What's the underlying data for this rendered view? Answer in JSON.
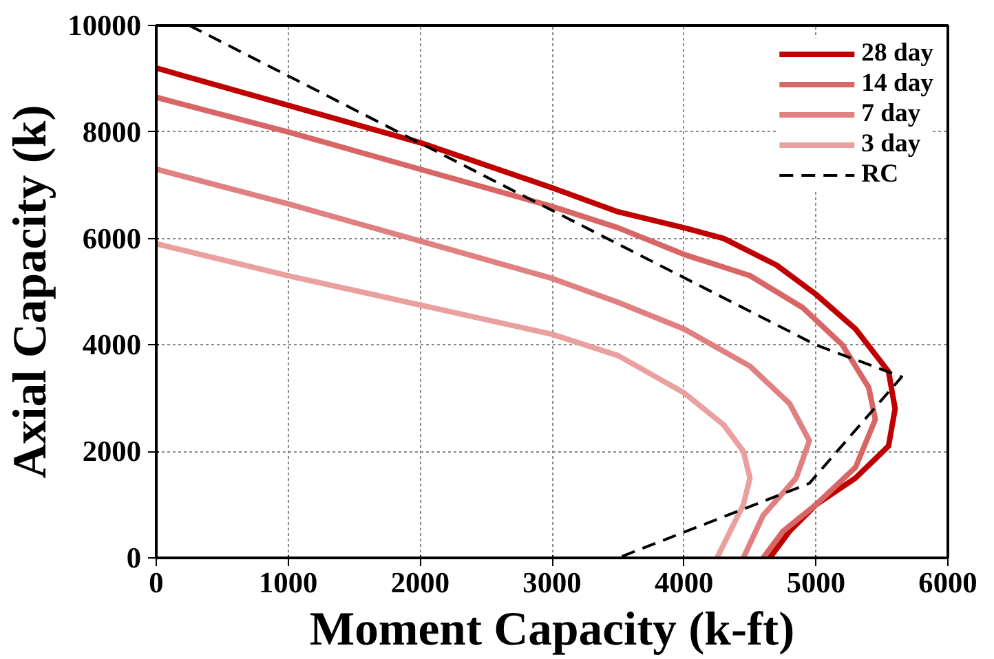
{
  "chart_data": {
    "type": "line",
    "xlabel": "Moment Capacity (k-ft)",
    "ylabel": "Axial Capacity (k)",
    "xlim": [
      0,
      6000
    ],
    "ylim": [
      0,
      10000
    ],
    "xticks": [
      0,
      1000,
      2000,
      3000,
      4000,
      5000,
      6000
    ],
    "yticks": [
      0,
      2000,
      4000,
      6000,
      8000,
      10000
    ],
    "grid": true,
    "legend": "top right",
    "series": [
      {
        "name": "28 day",
        "color": "#c00000",
        "line_style": "solid",
        "x": [
          0,
          1000,
          2000,
          3000,
          3500,
          4000,
          4300,
          4700,
          5000,
          5300,
          5550,
          5600,
          5550,
          5300,
          5000,
          4800,
          4650
        ],
        "values": [
          9200,
          8500,
          7800,
          6950,
          6500,
          6200,
          6000,
          5500,
          4950,
          4300,
          3500,
          2800,
          2100,
          1500,
          1000,
          500,
          0
        ]
      },
      {
        "name": "14 day",
        "color": "#d96666",
        "line_style": "solid",
        "x": [
          0,
          1000,
          2000,
          3000,
          3500,
          4000,
          4500,
          4900,
          5200,
          5400,
          5450,
          5300,
          5000,
          4750,
          4600
        ],
        "values": [
          8650,
          8000,
          7300,
          6600,
          6200,
          5700,
          5300,
          4700,
          4000,
          3200,
          2600,
          1700,
          1000,
          500,
          0
        ]
      },
      {
        "name": "7 day",
        "color": "#e08080",
        "line_style": "solid",
        "x": [
          0,
          1000,
          2000,
          3000,
          3500,
          4000,
          4500,
          4800,
          4950,
          4850,
          4600,
          4450
        ],
        "values": [
          7300,
          6650,
          5950,
          5250,
          4800,
          4300,
          3600,
          2900,
          2200,
          1500,
          800,
          0
        ]
      },
      {
        "name": "3 day",
        "color": "#eba0a0",
        "line_style": "solid",
        "x": [
          0,
          1000,
          2000,
          3000,
          3500,
          4000,
          4300,
          4450,
          4500,
          4450,
          4350,
          4250
        ],
        "values": [
          5900,
          5300,
          4750,
          4200,
          3800,
          3100,
          2500,
          2000,
          1500,
          1000,
          500,
          0
        ]
      },
      {
        "name": "RC",
        "color": "#000000",
        "line_style": "dashed",
        "x": [
          250,
          5000,
          5650,
          4950,
          3500
        ],
        "values": [
          10000,
          4000,
          3400,
          1400,
          0
        ]
      }
    ]
  }
}
